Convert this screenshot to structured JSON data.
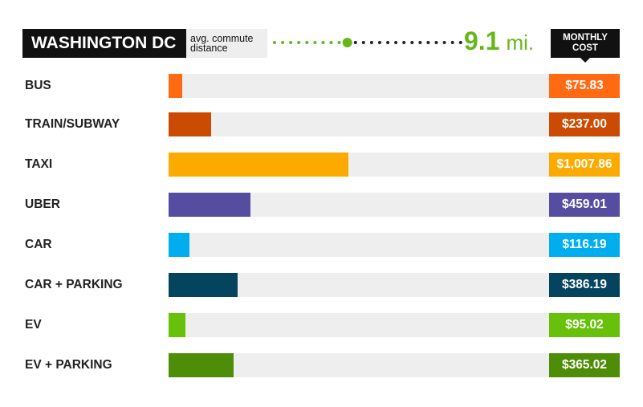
{
  "header": {
    "city": "WASHINGTON DC",
    "avg_label_line1": "avg. commute",
    "avg_label_line2": "distance",
    "distance_value": "9.1",
    "distance_unit": "mi.",
    "distance_color": "#67b71b",
    "monthly_line1": "MONTHLY",
    "monthly_line2": "COST"
  },
  "chart_data": {
    "type": "bar",
    "orientation": "horizontal",
    "xlim": [
      0,
      2130
    ],
    "categories": [
      "BUS",
      "TRAIN/SUBWAY",
      "TAXI",
      "UBER",
      "CAR",
      "CAR + PARKING",
      "EV",
      "EV + PARKING"
    ],
    "values": [
      75.83,
      237.0,
      1007.86,
      459.01,
      116.19,
      386.19,
      95.02,
      365.02
    ],
    "value_labels": [
      "$75.83",
      "$237.00",
      "$1,007.86",
      "$459.01",
      "$116.19",
      "$386.19",
      "$95.02",
      "$365.02"
    ],
    "colors": [
      "#ff6a13",
      "#cb4b03",
      "#fdaa00",
      "#564da0",
      "#00aeef",
      "#05445e",
      "#67c10a",
      "#4e8d08"
    ],
    "track_color": "#eeeeee"
  }
}
